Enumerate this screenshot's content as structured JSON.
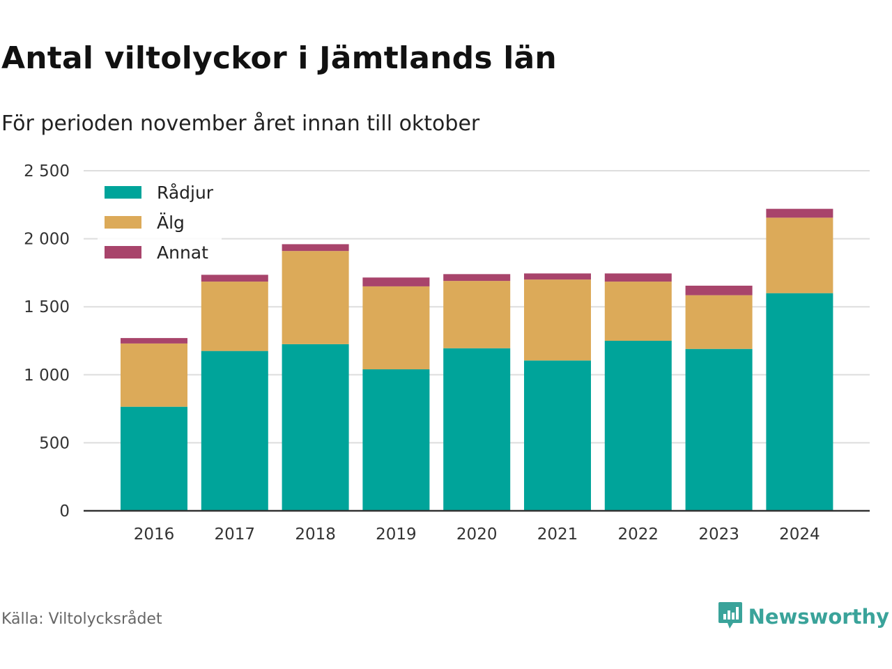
{
  "header": {
    "title": "Antal viltolyckor i Jämtlands län",
    "subtitle": "För perioden november året innan till oktober"
  },
  "footer": {
    "source": "Källa: Viltolycksrådet",
    "brand": "Newsworthy",
    "brand_icon": "bar-chart-logo-icon"
  },
  "colors": {
    "radjur": "#00a49a",
    "alg": "#dcaa59",
    "annat": "#a8446b",
    "grid": "#dddddd",
    "axis": "#333333",
    "brand": "#3aa39a"
  },
  "chart_data": {
    "type": "bar",
    "stacked": true,
    "categories": [
      "2016",
      "2017",
      "2018",
      "2019",
      "2020",
      "2021",
      "2022",
      "2023",
      "2024"
    ],
    "series": [
      {
        "name": "Rådjur",
        "values": [
          765,
          1175,
          1225,
          1040,
          1195,
          1105,
          1250,
          1190,
          1600
        ]
      },
      {
        "name": "Älg",
        "values": [
          465,
          510,
          685,
          610,
          495,
          595,
          435,
          395,
          555
        ]
      },
      {
        "name": "Annat",
        "values": [
          40,
          50,
          50,
          65,
          50,
          45,
          60,
          70,
          65
        ]
      }
    ],
    "ylim": [
      0,
      2500
    ],
    "yticks": [
      0,
      500,
      1000,
      1500,
      2000,
      2500
    ],
    "ytick_labels": [
      "0",
      "500",
      "1 000",
      "1 500",
      "2 000",
      "2 500"
    ],
    "grid": true,
    "legend_position": "top-left"
  }
}
